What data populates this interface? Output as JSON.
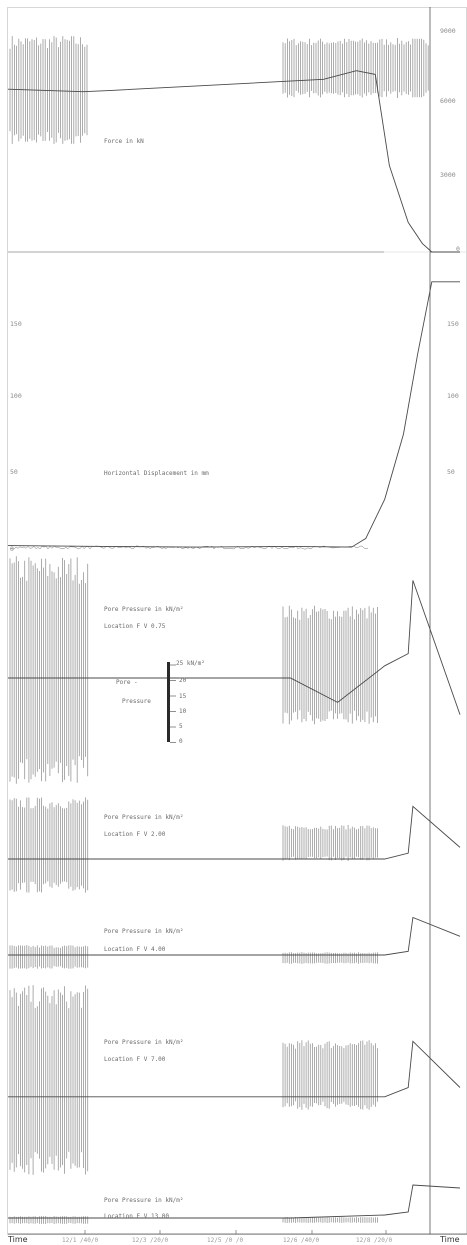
{
  "colors": {
    "trace": "#4a4a4a",
    "dense": "#8c8c8c",
    "text": "#6a6a6a",
    "axis": "#555555"
  },
  "chart_data": [
    {
      "type": "line",
      "title": "Force in kN",
      "right_ticks": [
        "9000",
        "6000",
        "3000",
        "0"
      ],
      "series": [
        {
          "x": [
            0,
            1.6,
            2.2,
            6.7,
            7.4,
            7.8,
            8.1,
            8.5,
            8.8,
            9.0,
            9.6
          ],
          "y": [
            6600,
            6500,
            6550,
            7000,
            7350,
            7200,
            3500,
            1200,
            350,
            0,
            0
          ]
        }
      ],
      "xlim": [
        0,
        9.6
      ],
      "ylim": [
        0,
        9000
      ]
    },
    {
      "type": "line",
      "title": "Horizontal Displacement in mm",
      "left_ticks": [
        "150",
        "100",
        "50",
        "0"
      ],
      "right_ticks": [
        "150",
        "100",
        "50"
      ],
      "series": [
        {
          "x": [
            0,
            2,
            4,
            6,
            7.3,
            7.6,
            8.0,
            8.4,
            8.7,
            9.0,
            9.6
          ],
          "y": [
            3,
            2.5,
            2,
            2.5,
            2,
            8,
            35,
            80,
            135,
            185,
            185
          ]
        }
      ],
      "xlim": [
        0,
        9.6
      ],
      "ylim": [
        0,
        200
      ]
    },
    {
      "type": "line",
      "title": "Pore Pressure in kN/m²",
      "location": "Location F V 0.75",
      "series": [
        {
          "x": [
            0,
            1.6,
            2.0,
            6.0,
            7.0,
            8.0,
            8.5,
            8.6,
            9.6
          ],
          "y": [
            0.5,
            0.5,
            0.5,
            0.5,
            0.4,
            0.55,
            0.6,
            0.9,
            0.35
          ]
        }
      ]
    },
    {
      "type": "line",
      "title": "Pore Pressure in kN/m²",
      "location": "Location F V 2.00",
      "series": [
        {
          "x": [
            0,
            2,
            6,
            8,
            8.5,
            8.6,
            9.6
          ],
          "y": [
            0.35,
            0.35,
            0.35,
            0.35,
            0.4,
            0.8,
            0.45
          ]
        }
      ]
    },
    {
      "type": "line",
      "title": "Pore Pressure in kN/m²",
      "location": "Location F V 4.00",
      "series": [
        {
          "x": [
            0,
            2,
            6,
            8,
            8.5,
            8.6,
            9.6
          ],
          "y": [
            0.4,
            0.4,
            0.4,
            0.4,
            0.45,
            0.9,
            0.65
          ]
        }
      ]
    },
    {
      "type": "line",
      "title": "Pore Pressure in kN/m²",
      "location": "Location F V 7.00",
      "series": [
        {
          "x": [
            0,
            2,
            6,
            8,
            8.5,
            8.6,
            9.6
          ],
          "y": [
            0.45,
            0.45,
            0.45,
            0.45,
            0.5,
            0.75,
            0.5
          ]
        }
      ]
    },
    {
      "type": "line",
      "title": "Pore Pressure in kN/m²",
      "location": "Location F V 13.00",
      "series": [
        {
          "x": [
            0,
            2,
            6,
            8,
            8.5,
            8.6,
            9.6
          ],
          "y": [
            0.2,
            0.2,
            0.2,
            0.25,
            0.3,
            0.75,
            0.7
          ]
        }
      ]
    }
  ],
  "pressure_scale": {
    "unit": "25 kN/m²",
    "label_line1": "Pore -",
    "label_line2": "Pressure",
    "ticks": [
      "20",
      "15",
      "10",
      "5",
      "0"
    ]
  },
  "time_axis": {
    "left_label": "Time",
    "right_label": "Time",
    "ticks": [
      "12/1 /40/0",
      "12/3 /20/0",
      "12/5 /0 /0",
      "12/6 /40/0",
      "12/8 /20/0"
    ]
  }
}
